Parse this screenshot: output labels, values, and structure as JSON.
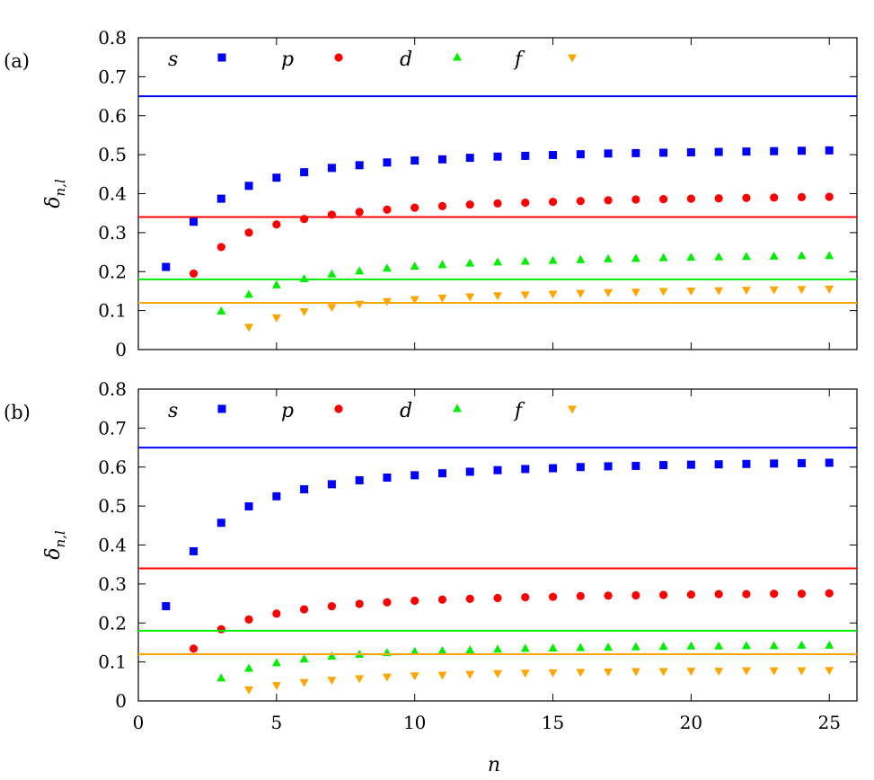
{
  "chart_data": [
    {
      "type": "scatter",
      "panel_label": "(a)",
      "xlabel": "n",
      "ylabel": "δn,l",
      "ylabel_base": "δ",
      "ylabel_subscript": "n,l",
      "xlim": [
        0,
        26
      ],
      "ylim": [
        0,
        0.8
      ],
      "x_ticks": [
        "0",
        "5",
        "10",
        "15",
        "20",
        "25"
      ],
      "y_ticks": [
        "0",
        "0.1",
        "0.2",
        "0.3",
        "0.4",
        "0.5",
        "0.6",
        "0.7",
        "0.8"
      ],
      "show_x_tick_labels": false,
      "grid": false,
      "legend_position": "top-left, horizontal",
      "series": [
        {
          "name": "s",
          "color": "#0000ff",
          "marker": "square",
          "x": [
            1,
            2,
            3,
            4,
            5,
            6,
            7,
            8,
            9,
            10,
            11,
            12,
            13,
            14,
            15,
            16,
            17,
            18,
            19,
            20,
            21,
            22,
            23,
            24,
            25
          ],
          "y": [
            0.212,
            0.328,
            0.387,
            0.42,
            0.441,
            0.455,
            0.466,
            0.473,
            0.48,
            0.485,
            0.488,
            0.492,
            0.495,
            0.497,
            0.499,
            0.501,
            0.503,
            0.504,
            0.505,
            0.506,
            0.507,
            0.508,
            0.509,
            0.51,
            0.511
          ],
          "reference": 0.65
        },
        {
          "name": "p",
          "color": "#ff0000",
          "marker": "circle",
          "x": [
            2,
            3,
            4,
            5,
            6,
            7,
            8,
            9,
            10,
            11,
            12,
            13,
            14,
            15,
            16,
            17,
            18,
            19,
            20,
            21,
            22,
            23,
            24,
            25
          ],
          "y": [
            0.195,
            0.263,
            0.3,
            0.321,
            0.335,
            0.346,
            0.353,
            0.359,
            0.364,
            0.368,
            0.372,
            0.375,
            0.377,
            0.379,
            0.381,
            0.383,
            0.385,
            0.386,
            0.387,
            0.388,
            0.389,
            0.39,
            0.391,
            0.392
          ],
          "reference": 0.34
        },
        {
          "name": "d",
          "color": "#00ee00",
          "marker": "triangle-up",
          "x": [
            3,
            4,
            5,
            6,
            7,
            8,
            9,
            10,
            11,
            12,
            13,
            14,
            15,
            16,
            17,
            18,
            19,
            20,
            21,
            22,
            23,
            24,
            25
          ],
          "y": [
            0.098,
            0.141,
            0.165,
            0.181,
            0.193,
            0.201,
            0.208,
            0.213,
            0.217,
            0.221,
            0.224,
            0.226,
            0.228,
            0.23,
            0.232,
            0.233,
            0.235,
            0.236,
            0.237,
            0.238,
            0.239,
            0.24,
            0.24
          ],
          "reference": 0.18
        },
        {
          "name": "f",
          "color": "#ffa500",
          "marker": "triangle-down",
          "x": [
            4,
            5,
            6,
            7,
            8,
            9,
            10,
            11,
            12,
            13,
            14,
            15,
            16,
            17,
            18,
            19,
            20,
            21,
            22,
            23,
            24,
            25
          ],
          "y": [
            0.058,
            0.082,
            0.098,
            0.109,
            0.117,
            0.124,
            0.129,
            0.133,
            0.136,
            0.139,
            0.141,
            0.143,
            0.145,
            0.147,
            0.148,
            0.15,
            0.151,
            0.152,
            0.153,
            0.154,
            0.155,
            0.156
          ],
          "reference": 0.12
        }
      ]
    },
    {
      "type": "scatter",
      "panel_label": "(b)",
      "xlabel": "n",
      "ylabel": "δn,l",
      "ylabel_base": "δ",
      "ylabel_subscript": "n,l",
      "xlim": [
        0,
        26
      ],
      "ylim": [
        0,
        0.8
      ],
      "x_ticks": [
        "0",
        "5",
        "10",
        "15",
        "20",
        "25"
      ],
      "y_ticks": [
        "0",
        "0.1",
        "0.2",
        "0.3",
        "0.4",
        "0.5",
        "0.6",
        "0.7",
        "0.8"
      ],
      "show_x_tick_labels": true,
      "grid": false,
      "legend_position": "top-left, horizontal",
      "series": [
        {
          "name": "s",
          "color": "#0000ff",
          "marker": "square",
          "x": [
            1,
            2,
            3,
            4,
            5,
            6,
            7,
            8,
            9,
            10,
            11,
            12,
            13,
            14,
            15,
            16,
            17,
            18,
            19,
            20,
            21,
            22,
            23,
            24,
            25
          ],
          "y": [
            0.243,
            0.384,
            0.457,
            0.499,
            0.525,
            0.543,
            0.556,
            0.566,
            0.573,
            0.579,
            0.584,
            0.588,
            0.592,
            0.595,
            0.597,
            0.6,
            0.602,
            0.603,
            0.605,
            0.606,
            0.607,
            0.608,
            0.609,
            0.61,
            0.611
          ],
          "reference": 0.65
        },
        {
          "name": "p",
          "color": "#ff0000",
          "marker": "circle",
          "x": [
            2,
            3,
            4,
            5,
            6,
            7,
            8,
            9,
            10,
            11,
            12,
            13,
            14,
            15,
            16,
            17,
            18,
            19,
            20,
            21,
            22,
            23,
            24,
            25
          ],
          "y": [
            0.134,
            0.184,
            0.209,
            0.224,
            0.235,
            0.243,
            0.249,
            0.253,
            0.257,
            0.26,
            0.262,
            0.264,
            0.266,
            0.267,
            0.269,
            0.27,
            0.271,
            0.272,
            0.273,
            0.274,
            0.274,
            0.275,
            0.275,
            0.276
          ],
          "reference": 0.34
        },
        {
          "name": "d",
          "color": "#00ee00",
          "marker": "triangle-up",
          "x": [
            3,
            4,
            5,
            6,
            7,
            8,
            9,
            10,
            11,
            12,
            13,
            14,
            15,
            16,
            17,
            18,
            19,
            20,
            21,
            22,
            23,
            24,
            25
          ],
          "y": [
            0.058,
            0.083,
            0.097,
            0.107,
            0.114,
            0.119,
            0.123,
            0.126,
            0.128,
            0.13,
            0.132,
            0.134,
            0.135,
            0.136,
            0.137,
            0.138,
            0.139,
            0.14,
            0.14,
            0.141,
            0.141,
            0.142,
            0.142
          ],
          "reference": 0.18
        },
        {
          "name": "f",
          "color": "#ffa500",
          "marker": "triangle-down",
          "x": [
            4,
            5,
            6,
            7,
            8,
            9,
            10,
            11,
            12,
            13,
            14,
            15,
            16,
            17,
            18,
            19,
            20,
            21,
            22,
            23,
            24,
            25
          ],
          "y": [
            0.029,
            0.04,
            0.048,
            0.054,
            0.058,
            0.062,
            0.065,
            0.067,
            0.069,
            0.071,
            0.072,
            0.073,
            0.074,
            0.075,
            0.076,
            0.076,
            0.077,
            0.077,
            0.078,
            0.078,
            0.078,
            0.079
          ],
          "reference": 0.12
        }
      ]
    }
  ]
}
